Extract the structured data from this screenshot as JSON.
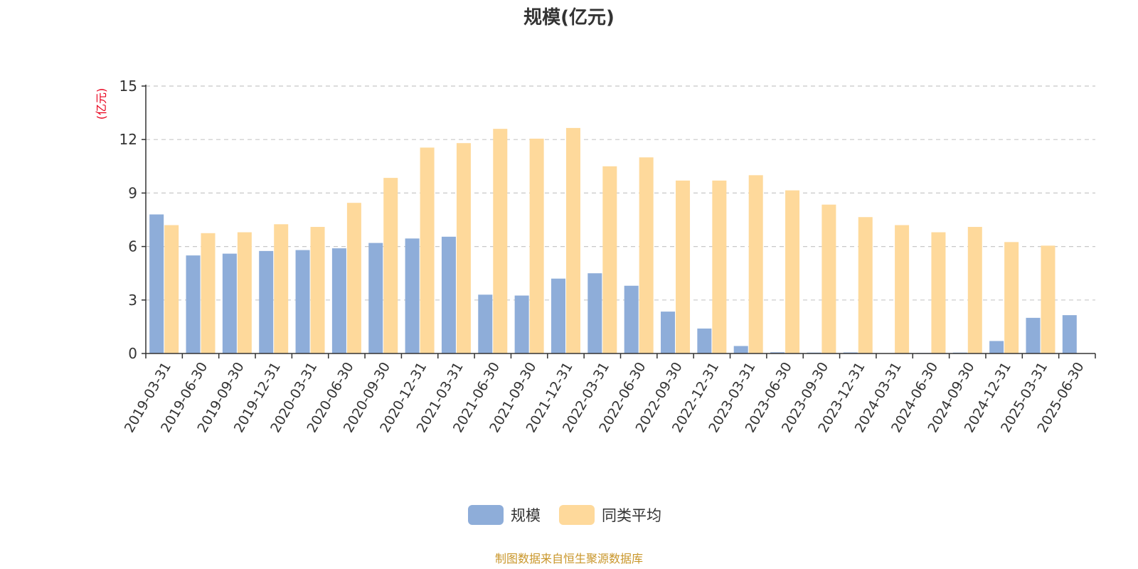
{
  "chart_data": {
    "type": "bar",
    "title": "规模(亿元)",
    "ylabel": "(亿元)",
    "xlabel": "",
    "ylim": [
      0,
      15
    ],
    "yticks": [
      0,
      3,
      6,
      9,
      12,
      15
    ],
    "grid": "horizontal dashed",
    "legend_position": "bottom",
    "categories": [
      "2019-03-31",
      "2019-06-30",
      "2019-09-30",
      "2019-12-31",
      "2020-03-31",
      "2020-06-30",
      "2020-09-30",
      "2020-12-31",
      "2021-03-31",
      "2021-06-30",
      "2021-09-30",
      "2021-12-31",
      "2022-03-31",
      "2022-06-30",
      "2022-09-30",
      "2022-12-31",
      "2023-03-31",
      "2023-06-30",
      "2023-09-30",
      "2023-12-31",
      "2024-03-31",
      "2024-06-30",
      "2024-09-30",
      "2024-12-31",
      "2025-03-31",
      "2025-06-30"
    ],
    "series": [
      {
        "name": "规模",
        "color": "#8eadd9",
        "values": [
          7.8,
          5.5,
          5.6,
          5.75,
          5.8,
          5.9,
          6.2,
          6.45,
          6.55,
          3.3,
          3.25,
          4.2,
          4.5,
          3.8,
          2.35,
          1.4,
          0.42,
          0.07,
          0.05,
          0.06,
          0.02,
          0.03,
          0.05,
          0.7,
          2.0,
          2.15
        ]
      },
      {
        "name": "同类平均",
        "color": "#fed99b",
        "values": [
          7.2,
          6.75,
          6.8,
          7.25,
          7.1,
          8.45,
          9.85,
          11.55,
          11.8,
          12.6,
          12.05,
          12.65,
          10.5,
          11.0,
          9.7,
          9.7,
          10.0,
          9.15,
          8.35,
          7.65,
          7.2,
          6.8,
          7.1,
          6.25,
          6.05,
          null
        ]
      }
    ]
  },
  "source_note": "制图数据来自恒生聚源数据库"
}
